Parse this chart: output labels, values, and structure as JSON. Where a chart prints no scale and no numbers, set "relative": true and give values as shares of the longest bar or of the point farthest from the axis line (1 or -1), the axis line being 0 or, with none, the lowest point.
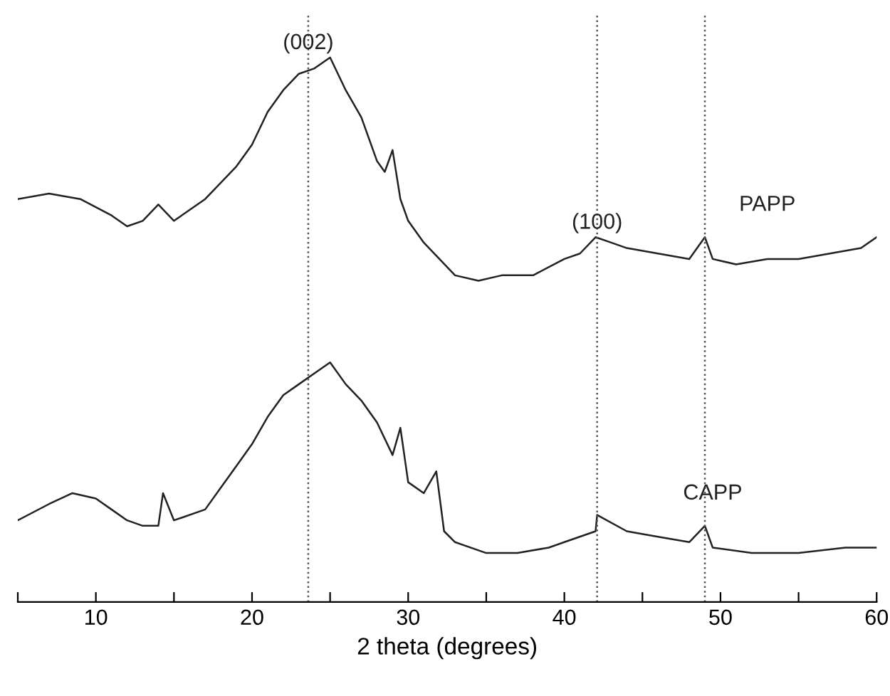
{
  "chart_data": {
    "type": "line",
    "relative": true,
    "xlabel": "2 theta (degrees)",
    "xlim": [
      5,
      60
    ],
    "xticks": [
      {
        "value": 5,
        "label": null
      },
      10,
      {
        "value": 15,
        "label": null
      },
      20,
      {
        "value": 25,
        "label": null
      },
      30,
      {
        "value": 35,
        "label": null
      },
      40,
      {
        "value": 45,
        "label": null
      },
      50,
      {
        "value": 55,
        "label": null
      },
      60
    ],
    "tick_labels": "x",
    "grid": false,
    "legend": false,
    "marker": "none",
    "line_style": "solid",
    "series": [
      {
        "name": "PAPP",
        "color": "#222222",
        "x": [
          5,
          7,
          9,
          11,
          12,
          13,
          14,
          15,
          17,
          19,
          20,
          21,
          22,
          23,
          24,
          25,
          26,
          27,
          28,
          28.5,
          29,
          29.5,
          30,
          31,
          32,
          33,
          34.5,
          36,
          38,
          40,
          41,
          42,
          43,
          44,
          46,
          48,
          49,
          49.5,
          51,
          53,
          55,
          57,
          59,
          60
        ],
        "values": [
          0.74,
          0.75,
          0.74,
          0.71,
          0.69,
          0.7,
          0.73,
          0.7,
          0.74,
          0.8,
          0.84,
          0.9,
          0.94,
          0.97,
          0.98,
          1.0,
          0.94,
          0.89,
          0.81,
          0.79,
          0.83,
          0.74,
          0.7,
          0.66,
          0.63,
          0.6,
          0.59,
          0.6,
          0.6,
          0.63,
          0.64,
          0.67,
          0.66,
          0.65,
          0.64,
          0.63,
          0.67,
          0.63,
          0.62,
          0.63,
          0.63,
          0.64,
          0.65,
          0.67
        ]
      },
      {
        "name": "CAPP",
        "color": "#222222",
        "x": [
          5,
          7,
          8.5,
          10,
          11,
          12,
          13,
          14,
          14.3,
          15,
          17,
          18,
          19,
          20,
          21,
          22,
          23,
          24,
          25,
          26,
          27,
          28,
          29,
          29.5,
          30,
          31,
          31.8,
          32.3,
          33,
          35,
          37,
          39,
          40,
          42,
          42.1,
          44,
          46,
          48,
          49,
          49.5,
          52,
          55,
          58,
          60
        ],
        "values": [
          0.15,
          0.18,
          0.2,
          0.19,
          0.17,
          0.15,
          0.14,
          0.14,
          0.2,
          0.15,
          0.17,
          0.21,
          0.25,
          0.29,
          0.34,
          0.38,
          0.4,
          0.42,
          0.44,
          0.4,
          0.37,
          0.33,
          0.27,
          0.32,
          0.22,
          0.2,
          0.24,
          0.13,
          0.11,
          0.09,
          0.09,
          0.1,
          0.11,
          0.13,
          0.16,
          0.13,
          0.12,
          0.11,
          0.14,
          0.1,
          0.09,
          0.09,
          0.1,
          0.1
        ]
      }
    ],
    "ref_lines": [
      {
        "axis": "x",
        "value": 23.6,
        "color": "#555555",
        "line_style": "dotted"
      },
      {
        "axis": "x",
        "value": 42.1,
        "color": "#555555",
        "line_style": "dotted"
      },
      {
        "axis": "x",
        "value": 49.0,
        "color": "#555555",
        "line_style": "dotted"
      }
    ],
    "annotations": [
      {
        "text": "(002)",
        "x": 23.6,
        "y": 1.0
      },
      {
        "text": "(100)",
        "x": 42.1,
        "y": 0.67
      }
    ]
  }
}
